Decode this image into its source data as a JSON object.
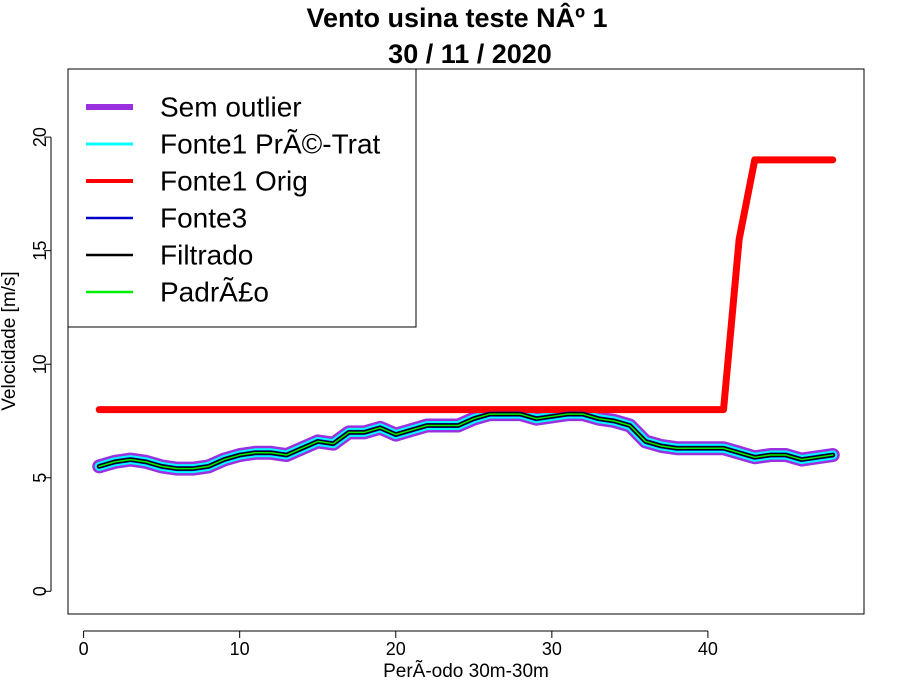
{
  "chart_data": {
    "type": "line",
    "title": "Vento usina teste NÂº 1",
    "subtitle": "30 / 11 / 2020",
    "xlabel": "PerÃ-odo 30m-30m",
    "ylabel": "Velocidade [m/s]",
    "xlim": [
      -1,
      50
    ],
    "ylim": [
      -1,
      23
    ],
    "x_ticks": [
      0,
      10,
      20,
      30,
      40
    ],
    "y_ticks": [
      0,
      5,
      10,
      15,
      20
    ],
    "grid": false,
    "legend_position": "top-left",
    "x": [
      1,
      2,
      3,
      4,
      5,
      6,
      7,
      8,
      9,
      10,
      11,
      12,
      13,
      14,
      15,
      16,
      17,
      18,
      19,
      20,
      21,
      22,
      23,
      24,
      25,
      26,
      27,
      28,
      29,
      30,
      31,
      32,
      33,
      34,
      35,
      36,
      37,
      38,
      39,
      40,
      41,
      42,
      43,
      44,
      45,
      46,
      47,
      48
    ],
    "series": [
      {
        "name": "Sem outlier",
        "color": "#9B30E0",
        "values": [
          5.5,
          5.7,
          5.8,
          5.7,
          5.5,
          5.4,
          5.4,
          5.5,
          5.8,
          6.0,
          6.1,
          6.1,
          6.0,
          6.3,
          6.6,
          6.5,
          7.0,
          7.0,
          7.2,
          6.9,
          7.1,
          7.3,
          7.3,
          7.3,
          7.6,
          7.8,
          7.8,
          7.8,
          7.6,
          7.7,
          7.8,
          7.8,
          7.6,
          7.5,
          7.3,
          6.6,
          6.4,
          6.3,
          6.3,
          6.3,
          6.3,
          6.1,
          5.9,
          6.0,
          6.0,
          5.8,
          5.9,
          6.0
        ]
      },
      {
        "name": "Fonte1 PrÃ©-Trat",
        "color": "#00FFFF",
        "values": [
          5.5,
          5.7,
          5.8,
          5.7,
          5.5,
          5.4,
          5.4,
          5.5,
          5.8,
          6.0,
          6.1,
          6.1,
          6.0,
          6.3,
          6.6,
          6.5,
          7.0,
          7.0,
          7.2,
          6.9,
          7.1,
          7.3,
          7.3,
          7.3,
          7.6,
          7.8,
          7.8,
          7.8,
          7.6,
          7.7,
          7.8,
          7.8,
          7.6,
          7.5,
          7.3,
          6.6,
          6.4,
          6.3,
          6.3,
          6.3,
          6.3,
          6.1,
          5.9,
          6.0,
          6.0,
          5.8,
          5.9,
          6.0
        ]
      },
      {
        "name": "Fonte1 Orig",
        "color": "#FF0000",
        "values": [
          8,
          8,
          8,
          8,
          8,
          8,
          8,
          8,
          8,
          8,
          8,
          8,
          8,
          8,
          8,
          8,
          8,
          8,
          8,
          8,
          8,
          8,
          8,
          8,
          8,
          8,
          8,
          8,
          8,
          8,
          8,
          8,
          8,
          8,
          8,
          8,
          8,
          8,
          8,
          8,
          8,
          15.5,
          19,
          19,
          19,
          19,
          19,
          19
        ]
      },
      {
        "name": "Fonte3",
        "color": "#0000CD",
        "values": [
          5.5,
          5.7,
          5.8,
          5.7,
          5.5,
          5.4,
          5.4,
          5.5,
          5.8,
          6.0,
          6.1,
          6.1,
          6.0,
          6.3,
          6.6,
          6.5,
          7.0,
          7.0,
          7.2,
          6.9,
          7.1,
          7.3,
          7.3,
          7.3,
          7.6,
          7.8,
          7.8,
          7.8,
          7.6,
          7.7,
          7.8,
          7.8,
          7.6,
          7.5,
          7.3,
          6.6,
          6.4,
          6.3,
          6.3,
          6.3,
          6.3,
          6.1,
          5.9,
          6.0,
          6.0,
          5.8,
          5.9,
          6.0
        ]
      },
      {
        "name": "Filtrado",
        "color": "#000000",
        "values": [
          5.5,
          5.7,
          5.8,
          5.7,
          5.5,
          5.4,
          5.4,
          5.5,
          5.8,
          6.0,
          6.1,
          6.1,
          6.0,
          6.3,
          6.6,
          6.5,
          7.0,
          7.0,
          7.2,
          6.9,
          7.1,
          7.3,
          7.3,
          7.3,
          7.6,
          7.8,
          7.8,
          7.8,
          7.6,
          7.7,
          7.8,
          7.8,
          7.6,
          7.5,
          7.3,
          6.6,
          6.4,
          6.3,
          6.3,
          6.3,
          6.3,
          6.1,
          5.9,
          6.0,
          6.0,
          5.8,
          5.9,
          6.0
        ]
      },
      {
        "name": "PadrÃ£o",
        "color": "#00EE00",
        "values": [
          5.5,
          5.7,
          5.8,
          5.7,
          5.5,
          5.4,
          5.4,
          5.5,
          5.8,
          6.0,
          6.1,
          6.1,
          6.0,
          6.3,
          6.6,
          6.5,
          7.0,
          7.0,
          7.2,
          6.9,
          7.1,
          7.3,
          7.3,
          7.3,
          7.6,
          7.8,
          7.8,
          7.8,
          7.6,
          7.7,
          7.8,
          7.8,
          7.6,
          7.5,
          7.3,
          6.6,
          6.4,
          6.3,
          6.3,
          6.3,
          6.3,
          6.1,
          5.9,
          6.0,
          6.0,
          5.8,
          5.9,
          6.0
        ]
      }
    ]
  }
}
